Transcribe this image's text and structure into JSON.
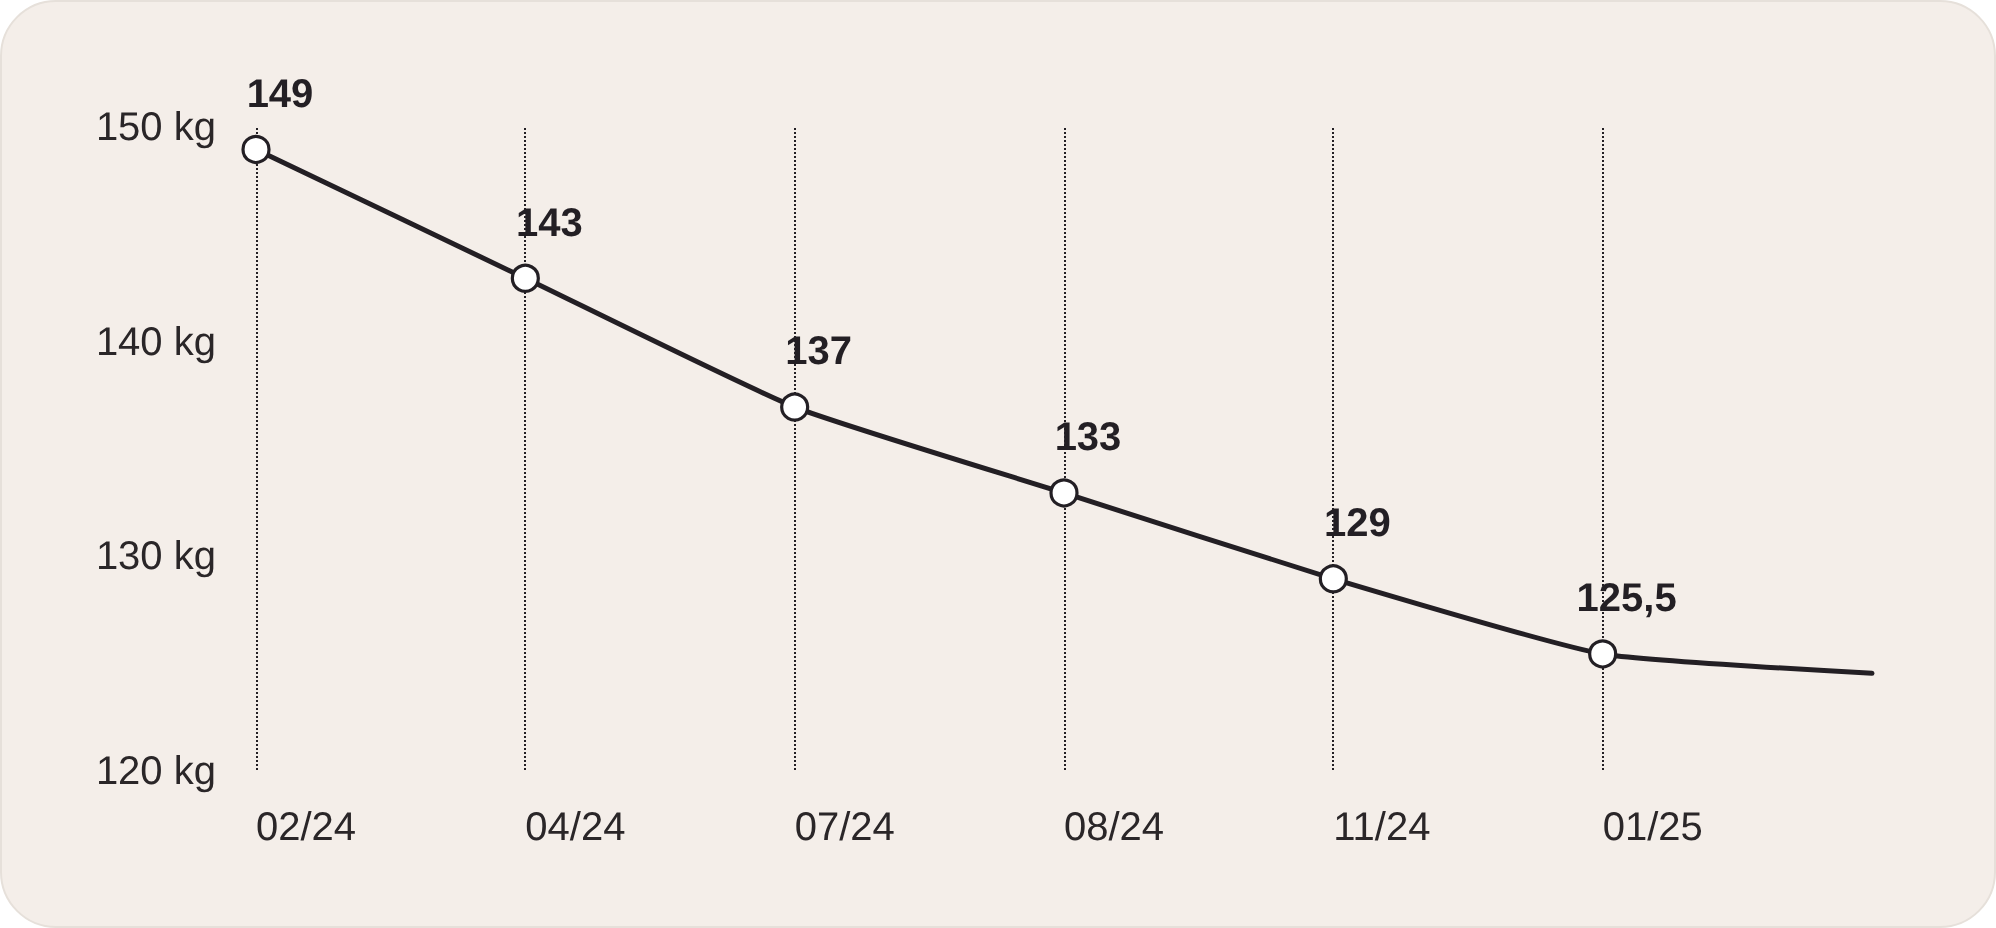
{
  "chart_data": {
    "type": "line",
    "categories": [
      "02/24",
      "04/24",
      "07/24",
      "08/24",
      "11/24",
      "01/25",
      null
    ],
    "series": [
      {
        "color": "#231f24",
        "values": [
          149,
          143,
          137,
          133,
          129,
          125.5,
          124.6
        ],
        "value_labels": [
          "149",
          "143",
          "137",
          "133",
          "129",
          "125,5",
          null
        ]
      }
    ],
    "ylim": [
      120,
      150
    ],
    "yticks": [
      {
        "value": 120,
        "label": "120 kg"
      },
      {
        "value": 130,
        "label": "130 kg"
      },
      {
        "value": 140,
        "label": "140 kg"
      },
      {
        "value": 150,
        "label": "150 kg"
      }
    ],
    "grid": "x",
    "marker": "circle",
    "line_style": "solid"
  }
}
